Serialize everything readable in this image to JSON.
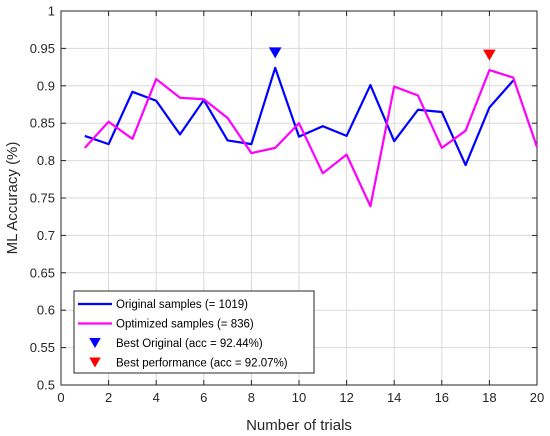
{
  "chart_data": {
    "type": "line",
    "xlabel": "Number of trials",
    "ylabel": "ML Accuracy (%)",
    "xlim": [
      0,
      20
    ],
    "ylim": [
      0.5,
      1
    ],
    "xticks": [
      0,
      2,
      4,
      6,
      8,
      10,
      12,
      14,
      16,
      18,
      20
    ],
    "yticks": [
      0.5,
      0.55,
      0.6,
      0.65,
      0.7,
      0.75,
      0.8,
      0.85,
      0.9,
      0.95,
      1
    ],
    "xtick_labels": [
      "0",
      "2",
      "4",
      "6",
      "8",
      "10",
      "12",
      "14",
      "16",
      "18",
      "20"
    ],
    "ytick_labels": [
      "0.5",
      "0.55",
      "0.6",
      "0.65",
      "0.7",
      "0.75",
      "0.8",
      "0.85",
      "0.9",
      "0.95",
      "1"
    ],
    "grid": true,
    "legend_position": "bottom-left",
    "series": [
      {
        "name": "Original samples (= 1019)",
        "color": "#0000ff",
        "x": [
          1,
          2,
          3,
          4,
          5,
          6,
          7,
          8,
          9,
          10,
          11,
          12,
          13,
          14,
          15,
          16,
          17,
          18,
          19
        ],
        "y": [
          0.833,
          0.822,
          0.892,
          0.88,
          0.835,
          0.881,
          0.827,
          0.822,
          0.924,
          0.832,
          0.846,
          0.833,
          0.901,
          0.826,
          0.868,
          0.865,
          0.794,
          0.871,
          0.907
        ]
      },
      {
        "name": "Optimized samples (= 836)",
        "color": "#ff00ff",
        "x": [
          1,
          2,
          3,
          4,
          5,
          6,
          7,
          8,
          9,
          10,
          11,
          12,
          13,
          14,
          15,
          16,
          17,
          18,
          19,
          20
        ],
        "y": [
          0.817,
          0.852,
          0.829,
          0.909,
          0.884,
          0.882,
          0.857,
          0.81,
          0.817,
          0.85,
          0.783,
          0.808,
          0.739,
          0.899,
          0.887,
          0.817,
          0.84,
          0.921,
          0.911,
          0.818
        ]
      }
    ],
    "markers": [
      {
        "name": "Best Original (acc = 92.44%)",
        "color": "#0000ff",
        "shape": "triangle-down",
        "x": 9,
        "y": 0.944
      },
      {
        "name": "Best performance (acc = 92.07%)",
        "color": "#ff0000",
        "shape": "triangle-down",
        "x": 18,
        "y": 0.941
      }
    ]
  }
}
